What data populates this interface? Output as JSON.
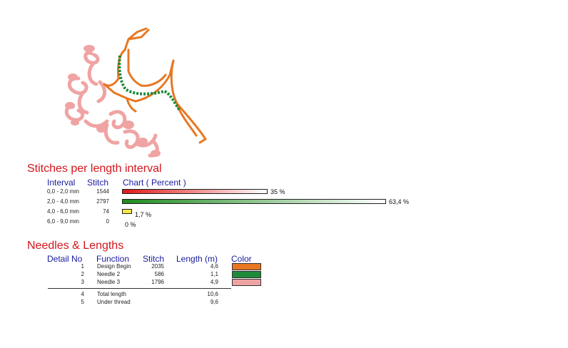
{
  "stitches_section": {
    "title": "Stitches per length interval",
    "headers": {
      "interval": "Interval",
      "stitch": "Stitch",
      "chart": "Chart ( Percent )"
    },
    "rows": [
      {
        "interval": "0,0 - 2,0 mm",
        "stitch": "1544",
        "percent_label": "35 %",
        "percent": 35.0,
        "color": "#e01818"
      },
      {
        "interval": "2,0 - 4,0 mm",
        "stitch": "2797",
        "percent_label": "63,4 %",
        "percent": 63.4,
        "color": "#1e8a1e"
      },
      {
        "interval": "4,0 - 6,0 mm",
        "stitch": "74",
        "percent_label": "1,7 %",
        "percent": 1.7,
        "color": "#f5e542"
      },
      {
        "interval": "6,0 - 9,0 mm",
        "stitch": "0",
        "percent_label": "0 %",
        "percent": 0.0,
        "color": "#ffffff"
      }
    ]
  },
  "needles_section": {
    "title": "Needles & Lengths",
    "headers": {
      "detail": "Detail No",
      "function": "Function",
      "stitch": "Stitch",
      "length": "Length (m)",
      "color": "Color"
    },
    "rows": [
      {
        "no": "1",
        "function": "Design Begin",
        "stitch": "2035",
        "length": "4,6",
        "color": "#e87722"
      },
      {
        "no": "2",
        "function": "Needle 2",
        "stitch": "586",
        "length": "1,1",
        "color": "#1e8a3a"
      },
      {
        "no": "3",
        "function": "Needle 3",
        "stitch": "1796",
        "length": "4,9",
        "color": "#f0a3a3"
      }
    ],
    "totals": [
      {
        "no": "4",
        "function": "Total length",
        "length": "10,6"
      },
      {
        "no": "5",
        "function": "Under thread",
        "length": "9,6"
      }
    ]
  },
  "design": {
    "icon": "embroidery-deer-design",
    "colors": {
      "orange": "#e87722",
      "green": "#1e8a3a",
      "pink": "#f0a3a3"
    }
  }
}
